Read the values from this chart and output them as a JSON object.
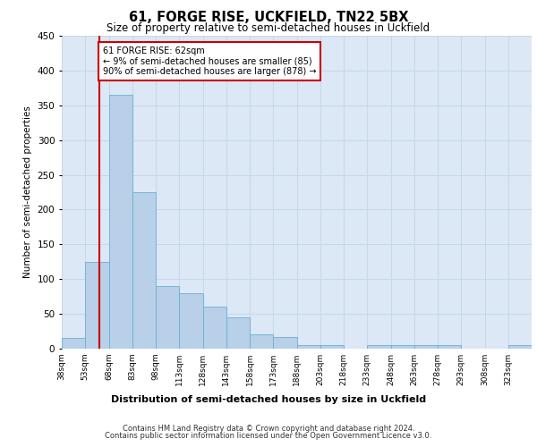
{
  "title": "61, FORGE RISE, UCKFIELD, TN22 5BX",
  "subtitle": "Size of property relative to semi-detached houses in Uckfield",
  "xlabel": "Distribution of semi-detached houses by size in Uckfield",
  "ylabel": "Number of semi-detached properties",
  "property_label": "61 FORGE RISE: 62sqm",
  "pct_smaller": "9% of semi-detached houses are smaller (85)",
  "pct_larger": "90% of semi-detached houses are larger (878)",
  "property_size": 62,
  "bin_edges": [
    38,
    53,
    68,
    83,
    98,
    113,
    128,
    143,
    158,
    173,
    188,
    203,
    218,
    233,
    248,
    263,
    278,
    293,
    308,
    323,
    338
  ],
  "counts": [
    15,
    125,
    365,
    225,
    90,
    80,
    60,
    45,
    20,
    17,
    5,
    5,
    0,
    5,
    5,
    5,
    5,
    0,
    0,
    5
  ],
  "bar_color": "#B8D0E8",
  "bar_edge_color": "#6BAED6",
  "highlight_line_color": "#CC0000",
  "annotation_box_color": "#CC0000",
  "grid_color": "#C8D8EA",
  "background_color": "#DCE8F5",
  "ylim": [
    0,
    450
  ],
  "yticks": [
    0,
    50,
    100,
    150,
    200,
    250,
    300,
    350,
    400,
    450
  ],
  "footer1": "Contains HM Land Registry data © Crown copyright and database right 2024.",
  "footer2": "Contains public sector information licensed under the Open Government Licence v3.0."
}
